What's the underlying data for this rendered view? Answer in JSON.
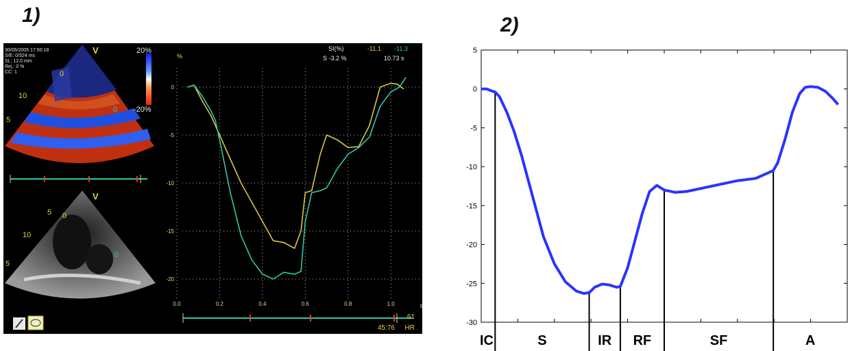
{
  "panel1": {
    "label": "1)",
    "color_view": {
      "date": "30/05/2005 17:50:18",
      "se": "S/E: 0/324 ms",
      "sl": "SL: 12.0 mm",
      "rej": "Rej.: 0 %",
      "cc": "CC: 1",
      "scale_top": "20%",
      "scale_bottom": "-20%",
      "marker": "V",
      "depth_10": "10",
      "depth_5": "5",
      "roi_upper": "0",
      "roi_lower": "0"
    },
    "gray_view": {
      "marker": "V",
      "depth_5a": "5",
      "depth_10": "10",
      "depth_5b": "5",
      "roi_upper": "0",
      "roi_lower": "0"
    },
    "readout": {
      "si_label": "SI(%)",
      "si_yellow": "-11.1",
      "si_green": "-11.3",
      "s_value": "S -3.2 %",
      "time": "10.73 s"
    },
    "footer": {
      "hr_value": "61",
      "hr_label": "HR",
      "clock": "45:76"
    },
    "colors": {
      "yellow": "#d8c840",
      "green": "#2fc8a8",
      "background": "#000000",
      "axis": "#dddd88"
    },
    "chart_data": {
      "type": "line",
      "ylabel": "%",
      "xlabel": "s",
      "xlim": [
        0,
        1.15
      ],
      "ylim": [
        -22,
        2
      ],
      "xticks": [
        "0.0",
        "0.2",
        "0.4",
        "0.6",
        "0.8",
        "1.0"
      ],
      "yticks": [
        "0",
        "-5",
        "-10",
        "-15",
        "-20"
      ],
      "series": [
        {
          "color": "#d8c840",
          "x": [
            0.05,
            0.08,
            0.12,
            0.16,
            0.2,
            0.25,
            0.3,
            0.35,
            0.4,
            0.45,
            0.5,
            0.55,
            0.58,
            0.6,
            0.63,
            0.67,
            0.7,
            0.75,
            0.8,
            0.85,
            0.9,
            0.95,
            1.0,
            1.03,
            1.06
          ],
          "y": [
            0,
            0.2,
            -1.5,
            -3,
            -5,
            -7.5,
            -10,
            -12,
            -14,
            -16,
            -16.2,
            -16.8,
            -15,
            -11,
            -10.8,
            -7,
            -5,
            -5.5,
            -6.3,
            -6.2,
            -4,
            0,
            0.4,
            0.3,
            -0.2
          ]
        },
        {
          "color": "#2fc8a8",
          "x": [
            0.05,
            0.08,
            0.12,
            0.16,
            0.18,
            0.2,
            0.25,
            0.3,
            0.35,
            0.4,
            0.45,
            0.5,
            0.55,
            0.58,
            0.6,
            0.63,
            0.67,
            0.7,
            0.75,
            0.8,
            0.85,
            0.9,
            0.95,
            1.0,
            1.04,
            1.07
          ],
          "y": [
            0,
            0.2,
            -1,
            -2.5,
            -3.5,
            -5.5,
            -11,
            -15.5,
            -18,
            -19.5,
            -20,
            -19.3,
            -19.5,
            -19.2,
            -14,
            -11,
            -10.8,
            -10.5,
            -8.5,
            -7,
            -6.3,
            -5.2,
            -2,
            -0.5,
            0,
            1
          ]
        }
      ]
    }
  },
  "panel2": {
    "label": "2)",
    "colors": {
      "line": "#2b33ff",
      "axis": "#000000"
    },
    "phase_labels": [
      "IC",
      "S",
      "IR",
      "RF",
      "SF",
      "A"
    ],
    "chart_data": {
      "type": "line",
      "xlim": [
        0,
        1
      ],
      "ylim": [
        -30,
        5
      ],
      "yticks": [
        "5",
        "0",
        "-5",
        "-10",
        "-15",
        "-20",
        "-25",
        "-30"
      ],
      "phase_boundaries_x": [
        0.038,
        0.295,
        0.38,
        0.5,
        0.798
      ],
      "series": [
        {
          "color": "#2b33ff",
          "x": [
            0,
            0.015,
            0.025,
            0.038,
            0.05,
            0.07,
            0.09,
            0.11,
            0.13,
            0.15,
            0.17,
            0.2,
            0.23,
            0.26,
            0.28,
            0.295,
            0.31,
            0.33,
            0.35,
            0.37,
            0.38,
            0.4,
            0.42,
            0.44,
            0.46,
            0.48,
            0.5,
            0.53,
            0.56,
            0.6,
            0.65,
            0.7,
            0.75,
            0.798,
            0.81,
            0.83,
            0.85,
            0.87,
            0.885,
            0.9,
            0.92,
            0.94,
            0.96,
            0.975
          ],
          "y": [
            0,
            0,
            -0.2,
            -0.4,
            -1,
            -3,
            -5.5,
            -8.5,
            -12,
            -15.5,
            -19,
            -22.5,
            -24.8,
            -26,
            -26.3,
            -26.2,
            -25.5,
            -25.1,
            -25.2,
            -25.5,
            -25.4,
            -23,
            -19.5,
            -16,
            -13.2,
            -12.4,
            -13,
            -13.3,
            -13.2,
            -12.8,
            -12.3,
            -11.8,
            -11.5,
            -10.5,
            -9.5,
            -6.5,
            -3,
            -0.6,
            0.2,
            0.3,
            0.2,
            -0.3,
            -1.2,
            -2
          ]
        }
      ]
    }
  }
}
